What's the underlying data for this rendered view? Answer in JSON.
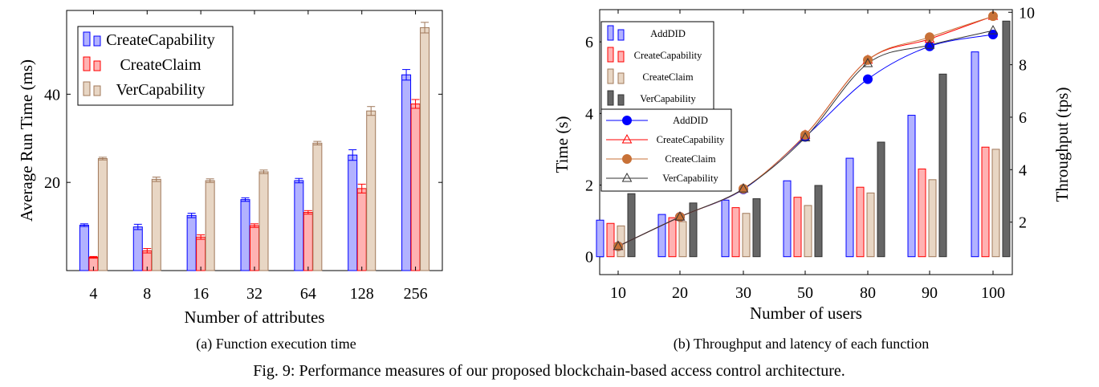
{
  "figure_caption": "Fig. 9: Performance measures of our proposed blockchain-based access control architecture.",
  "colors": {
    "blue": "#0000ff",
    "blue_fill": "#b2b2ff",
    "red": "#ff0000",
    "red_fill": "#ffb2b2",
    "tan": "#a0785a",
    "tan_fill": "#e8d6c4",
    "dark": "#333333",
    "dark_fill": "#666666",
    "orange": "#c87137"
  },
  "chart_data": [
    {
      "type": "bar",
      "caption": "(a) Function execution time",
      "xlabel": "Number of attributes",
      "ylabel": "Average Run Time (ms)",
      "ylim": [
        0,
        59
      ],
      "yticks": [
        20,
        40
      ],
      "categories": [
        "4",
        "8",
        "16",
        "32",
        "64",
        "128",
        "256"
      ],
      "legend_position": "top-left",
      "error_bars": true,
      "series": [
        {
          "name": "CreateCapability",
          "color": "blue",
          "values": [
            10.3,
            9.9,
            12.5,
            16.1,
            20.4,
            26.2,
            44.4
          ],
          "errors": [
            0.3,
            0.6,
            0.5,
            0.4,
            0.5,
            1.2,
            1.2
          ]
        },
        {
          "name": "CreateClaim",
          "color": "red",
          "values": [
            3.0,
            4.5,
            7.6,
            10.2,
            13.2,
            18.6,
            37.8
          ],
          "errors": [
            0.2,
            0.5,
            0.5,
            0.4,
            0.4,
            1.0,
            1.0
          ]
        },
        {
          "name": "VerCapability",
          "color": "tan",
          "values": [
            25.4,
            20.7,
            20.4,
            22.4,
            28.9,
            36.2,
            55.1
          ],
          "errors": [
            0.3,
            0.5,
            0.4,
            0.4,
            0.4,
            1.0,
            1.2
          ]
        }
      ]
    },
    {
      "type": "bar+line",
      "caption": "(b) Throughput and latency of each function",
      "xlabel": "Number of users",
      "ylabel": "Time (s)",
      "ylabel_right": "Throughput (tps)",
      "categories": [
        "10",
        "20",
        "30",
        "50",
        "80",
        "90",
        "100"
      ],
      "ylim": [
        -0.5,
        6.9
      ],
      "yticks": [
        0,
        2,
        4,
        6
      ],
      "ylim_right": [
        0,
        10.1
      ],
      "yticks_right": [
        2,
        4,
        6,
        8,
        10
      ],
      "bar_legend_position": "top-left",
      "line_legend_position": "upper-left",
      "bar_series": [
        {
          "name": "AddDID",
          "color": "blue",
          "values": [
            1.02,
            1.18,
            1.58,
            2.12,
            2.75,
            3.95,
            5.72
          ]
        },
        {
          "name": "CreateCapability",
          "color": "red",
          "values": [
            0.93,
            1.09,
            1.37,
            1.66,
            1.94,
            2.45,
            3.06
          ]
        },
        {
          "name": "CreateClaim",
          "color": "tan",
          "values": [
            0.86,
            0.98,
            1.21,
            1.43,
            1.78,
            2.15,
            3.0
          ]
        },
        {
          "name": "VerCapability",
          "color": "dark",
          "values": [
            1.76,
            1.5,
            1.62,
            1.99,
            3.2,
            5.1,
            6.58
          ]
        }
      ],
      "line_series": [
        {
          "name": "AddDID",
          "color": "blue",
          "marker": "circle",
          "values": [
            1.08,
            2.2,
            3.25,
            5.25,
            7.45,
            8.7,
            9.15
          ]
        },
        {
          "name": "CreateCapability",
          "color": "red",
          "marker": "triangle",
          "values": [
            1.08,
            2.2,
            3.27,
            5.32,
            8.18,
            8.98,
            9.85
          ]
        },
        {
          "name": "CreateClaim",
          "color": "orange",
          "marker": "circle",
          "values": [
            1.08,
            2.2,
            3.27,
            5.32,
            8.18,
            9.05,
            9.85
          ]
        },
        {
          "name": "VerCapability",
          "color": "dark",
          "marker": "triangle",
          "values": [
            1.08,
            2.2,
            3.27,
            5.22,
            8.05,
            8.75,
            9.3
          ]
        }
      ]
    }
  ]
}
